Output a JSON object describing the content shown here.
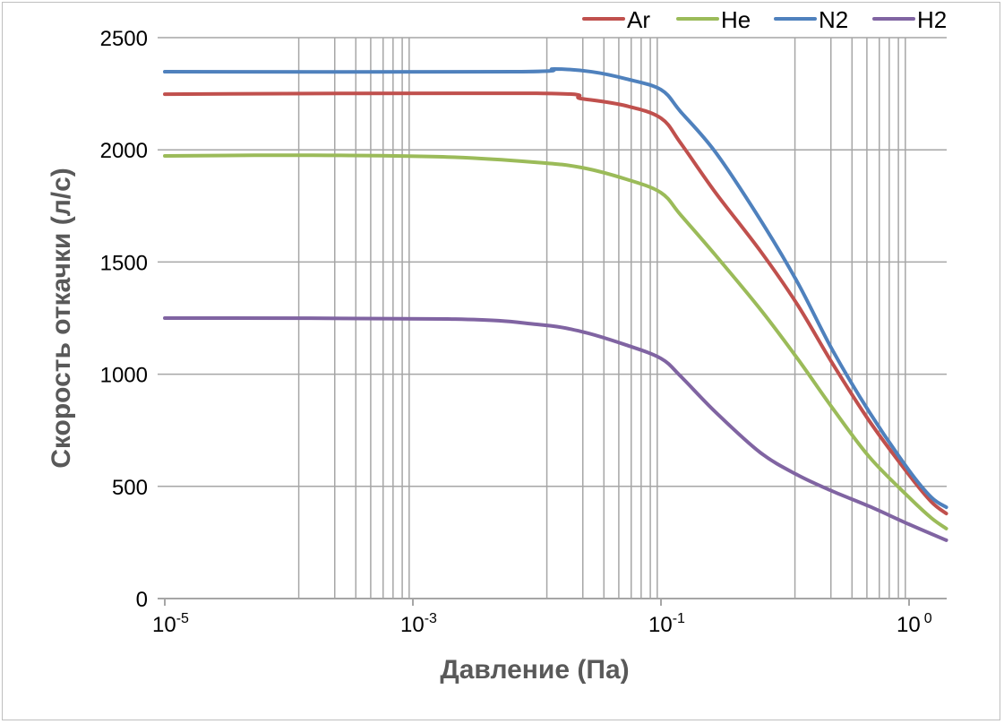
{
  "chart_data": {
    "type": "line",
    "title": "",
    "xlabel": "Давление (Па)",
    "ylabel": "Скорость откачки (л/с)",
    "x_scale": "log (labeled decades, x given as position in labeled-tick units)",
    "x_ticks": [
      {
        "pos": 0,
        "base": "10",
        "exp": "-5"
      },
      {
        "pos": 1,
        "base": "10",
        "exp": "-3"
      },
      {
        "pos": 2,
        "base": "10",
        "exp": "-1"
      },
      {
        "pos": 3,
        "base": "10",
        "exp": "0"
      }
    ],
    "xlim": [
      0,
      3.15
    ],
    "ylim": [
      0,
      2500
    ],
    "y_ticks": [
      "0",
      "500",
      "1000",
      "1500",
      "2000",
      "2500"
    ],
    "grid": true,
    "legend_position": "top-right",
    "series": [
      {
        "name": "Ar",
        "color": "#c0504d",
        "x": [
          0,
          1.5,
          1.68,
          1.86,
          2.0,
          2.08,
          2.22,
          2.4,
          2.55,
          2.69,
          2.84,
          3.0,
          3.09,
          3.15
        ],
        "y": [
          2248,
          2252,
          2228,
          2196,
          2141,
          2029,
          1809,
          1550,
          1310,
          1050,
          791,
          551,
          431,
          379
        ]
      },
      {
        "name": "He",
        "color": "#9bbb59",
        "x": [
          0,
          0.6,
          1.14,
          1.5,
          1.68,
          1.86,
          2.0,
          2.08,
          2.22,
          2.4,
          2.55,
          2.69,
          2.84,
          3.0,
          3.09,
          3.15
        ],
        "y": [
          1973,
          1976,
          1968,
          1944,
          1921,
          1869,
          1809,
          1709,
          1530,
          1290,
          1070,
          851,
          631,
          451,
          359,
          312
        ]
      },
      {
        "name": "N2",
        "color": "#4f81bd",
        "x": [
          0,
          1.41,
          1.57,
          1.72,
          1.86,
          2.0,
          2.08,
          2.22,
          2.4,
          2.55,
          2.69,
          2.84,
          3.0,
          3.09,
          3.15
        ],
        "y": [
          2348,
          2348,
          2360,
          2348,
          2316,
          2268,
          2169,
          1989,
          1689,
          1410,
          1110,
          831,
          571,
          451,
          407
        ]
      },
      {
        "name": "H2",
        "color": "#8064a2",
        "x": [
          0,
          1.14,
          1.5,
          1.68,
          1.86,
          2.0,
          2.08,
          2.22,
          2.4,
          2.55,
          2.69,
          2.84,
          3.0,
          3.15
        ],
        "y": [
          1250,
          1246,
          1222,
          1190,
          1130,
          1070,
          990,
          831,
          651,
          551,
          479,
          411,
          331,
          260
        ]
      }
    ]
  }
}
